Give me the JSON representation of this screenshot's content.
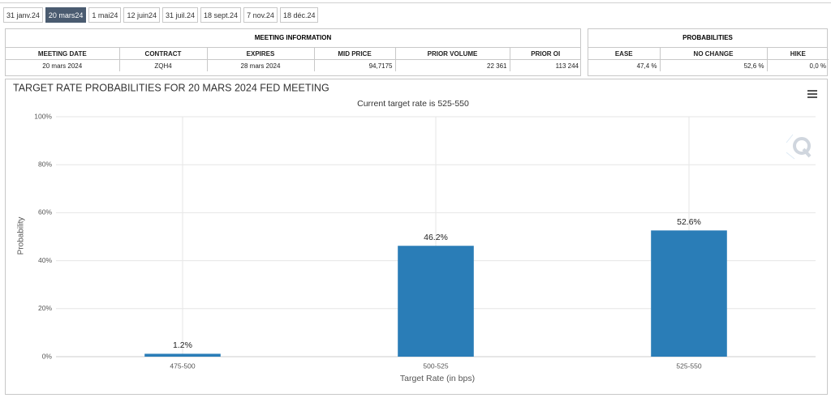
{
  "tabs": [
    {
      "label": "31 janv.24",
      "active": false
    },
    {
      "label": "20 mars24",
      "active": true
    },
    {
      "label": "1 mai24",
      "active": false
    },
    {
      "label": "12 juin24",
      "active": false
    },
    {
      "label": "31 juil.24",
      "active": false
    },
    {
      "label": "18 sept.24",
      "active": false
    },
    {
      "label": "7 nov.24",
      "active": false
    },
    {
      "label": "18 déc.24",
      "active": false
    }
  ],
  "meeting_information": {
    "title": "MEETING INFORMATION",
    "columns": [
      "MEETING DATE",
      "CONTRACT",
      "EXPIRES",
      "MID PRICE",
      "PRIOR VOLUME",
      "PRIOR OI"
    ],
    "rows": [
      [
        "20 mars 2024",
        "ZQH4",
        "28 mars 2024",
        "94,7175",
        "22 361",
        "113 244"
      ]
    ]
  },
  "probabilities": {
    "title": "PROBABILITIES",
    "columns": [
      "EASE",
      "NO CHANGE",
      "HIKE"
    ],
    "rows": [
      [
        "47,4 %",
        "52,6 %",
        "0,0 %"
      ]
    ]
  },
  "chart_data": {
    "type": "bar",
    "title": "TARGET RATE PROBABILITIES FOR 20 MARS 2024 FED MEETING",
    "subtitle": "Current target rate is 525-550",
    "x_label": "Target Rate (in bps)",
    "y_label": "Probability",
    "categories": [
      "475-500",
      "500-525",
      "525-550"
    ],
    "values": [
      1.2,
      46.2,
      52.6
    ],
    "value_labels": [
      "1.2%",
      "46.2%",
      "52.6%"
    ],
    "color": "#2a7db7",
    "ylim": [
      0,
      100
    ],
    "yticks": [
      {
        "value": 0,
        "label": "0%"
      },
      {
        "value": 20,
        "label": "20%"
      },
      {
        "value": 40,
        "label": "40%"
      },
      {
        "value": 60,
        "label": "60%"
      },
      {
        "value": 80,
        "label": "80%"
      },
      {
        "value": 100,
        "label": "100%"
      }
    ],
    "grid": true
  }
}
